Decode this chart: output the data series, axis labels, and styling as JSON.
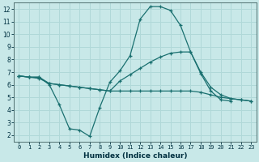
{
  "title": "",
  "xlabel": "Humidex (Indice chaleur)",
  "ylabel": "",
  "bg_color": "#c8e8e8",
  "grid_color": "#b0d8d8",
  "line_color": "#1a7070",
  "xlim": [
    -0.5,
    23.5
  ],
  "ylim": [
    1.5,
    12.5
  ],
  "xticks": [
    0,
    1,
    2,
    3,
    4,
    5,
    6,
    7,
    8,
    9,
    10,
    11,
    12,
    13,
    14,
    15,
    16,
    17,
    18,
    19,
    20,
    21,
    22,
    23
  ],
  "yticks": [
    2,
    3,
    4,
    5,
    6,
    7,
    8,
    9,
    10,
    11,
    12
  ],
  "line1_x": [
    0,
    1,
    2,
    3,
    4,
    5,
    6,
    7,
    8,
    9,
    10,
    11,
    12,
    13,
    14,
    15,
    16,
    17,
    18,
    19,
    20,
    21
  ],
  "line1_y": [
    6.7,
    6.6,
    6.6,
    6.0,
    4.4,
    2.5,
    2.4,
    1.9,
    4.2,
    6.2,
    7.1,
    8.3,
    11.2,
    12.2,
    12.2,
    11.9,
    10.7,
    8.6,
    6.9,
    5.5,
    4.8,
    4.7
  ],
  "line2_x": [
    0,
    1,
    2,
    3,
    4,
    5,
    6,
    7,
    8,
    9,
    10,
    11,
    12,
    13,
    14,
    15,
    16,
    17,
    18,
    19,
    20,
    21,
    22,
    23
  ],
  "line2_y": [
    6.7,
    6.6,
    6.6,
    6.1,
    6.0,
    5.9,
    5.8,
    5.7,
    5.6,
    5.5,
    6.3,
    6.8,
    7.3,
    7.8,
    8.2,
    8.5,
    8.6,
    8.6,
    7.0,
    5.8,
    5.2,
    4.9,
    4.8,
    4.7
  ],
  "line3_x": [
    0,
    1,
    2,
    3,
    4,
    5,
    6,
    7,
    8,
    9,
    10,
    11,
    12,
    13,
    14,
    15,
    16,
    17,
    18,
    19,
    20,
    21,
    22,
    23
  ],
  "line3_y": [
    6.7,
    6.6,
    6.5,
    6.1,
    6.0,
    5.9,
    5.8,
    5.7,
    5.6,
    5.5,
    5.5,
    5.5,
    5.5,
    5.5,
    5.5,
    5.5,
    5.5,
    5.5,
    5.4,
    5.2,
    5.0,
    4.9,
    4.8,
    4.7
  ]
}
